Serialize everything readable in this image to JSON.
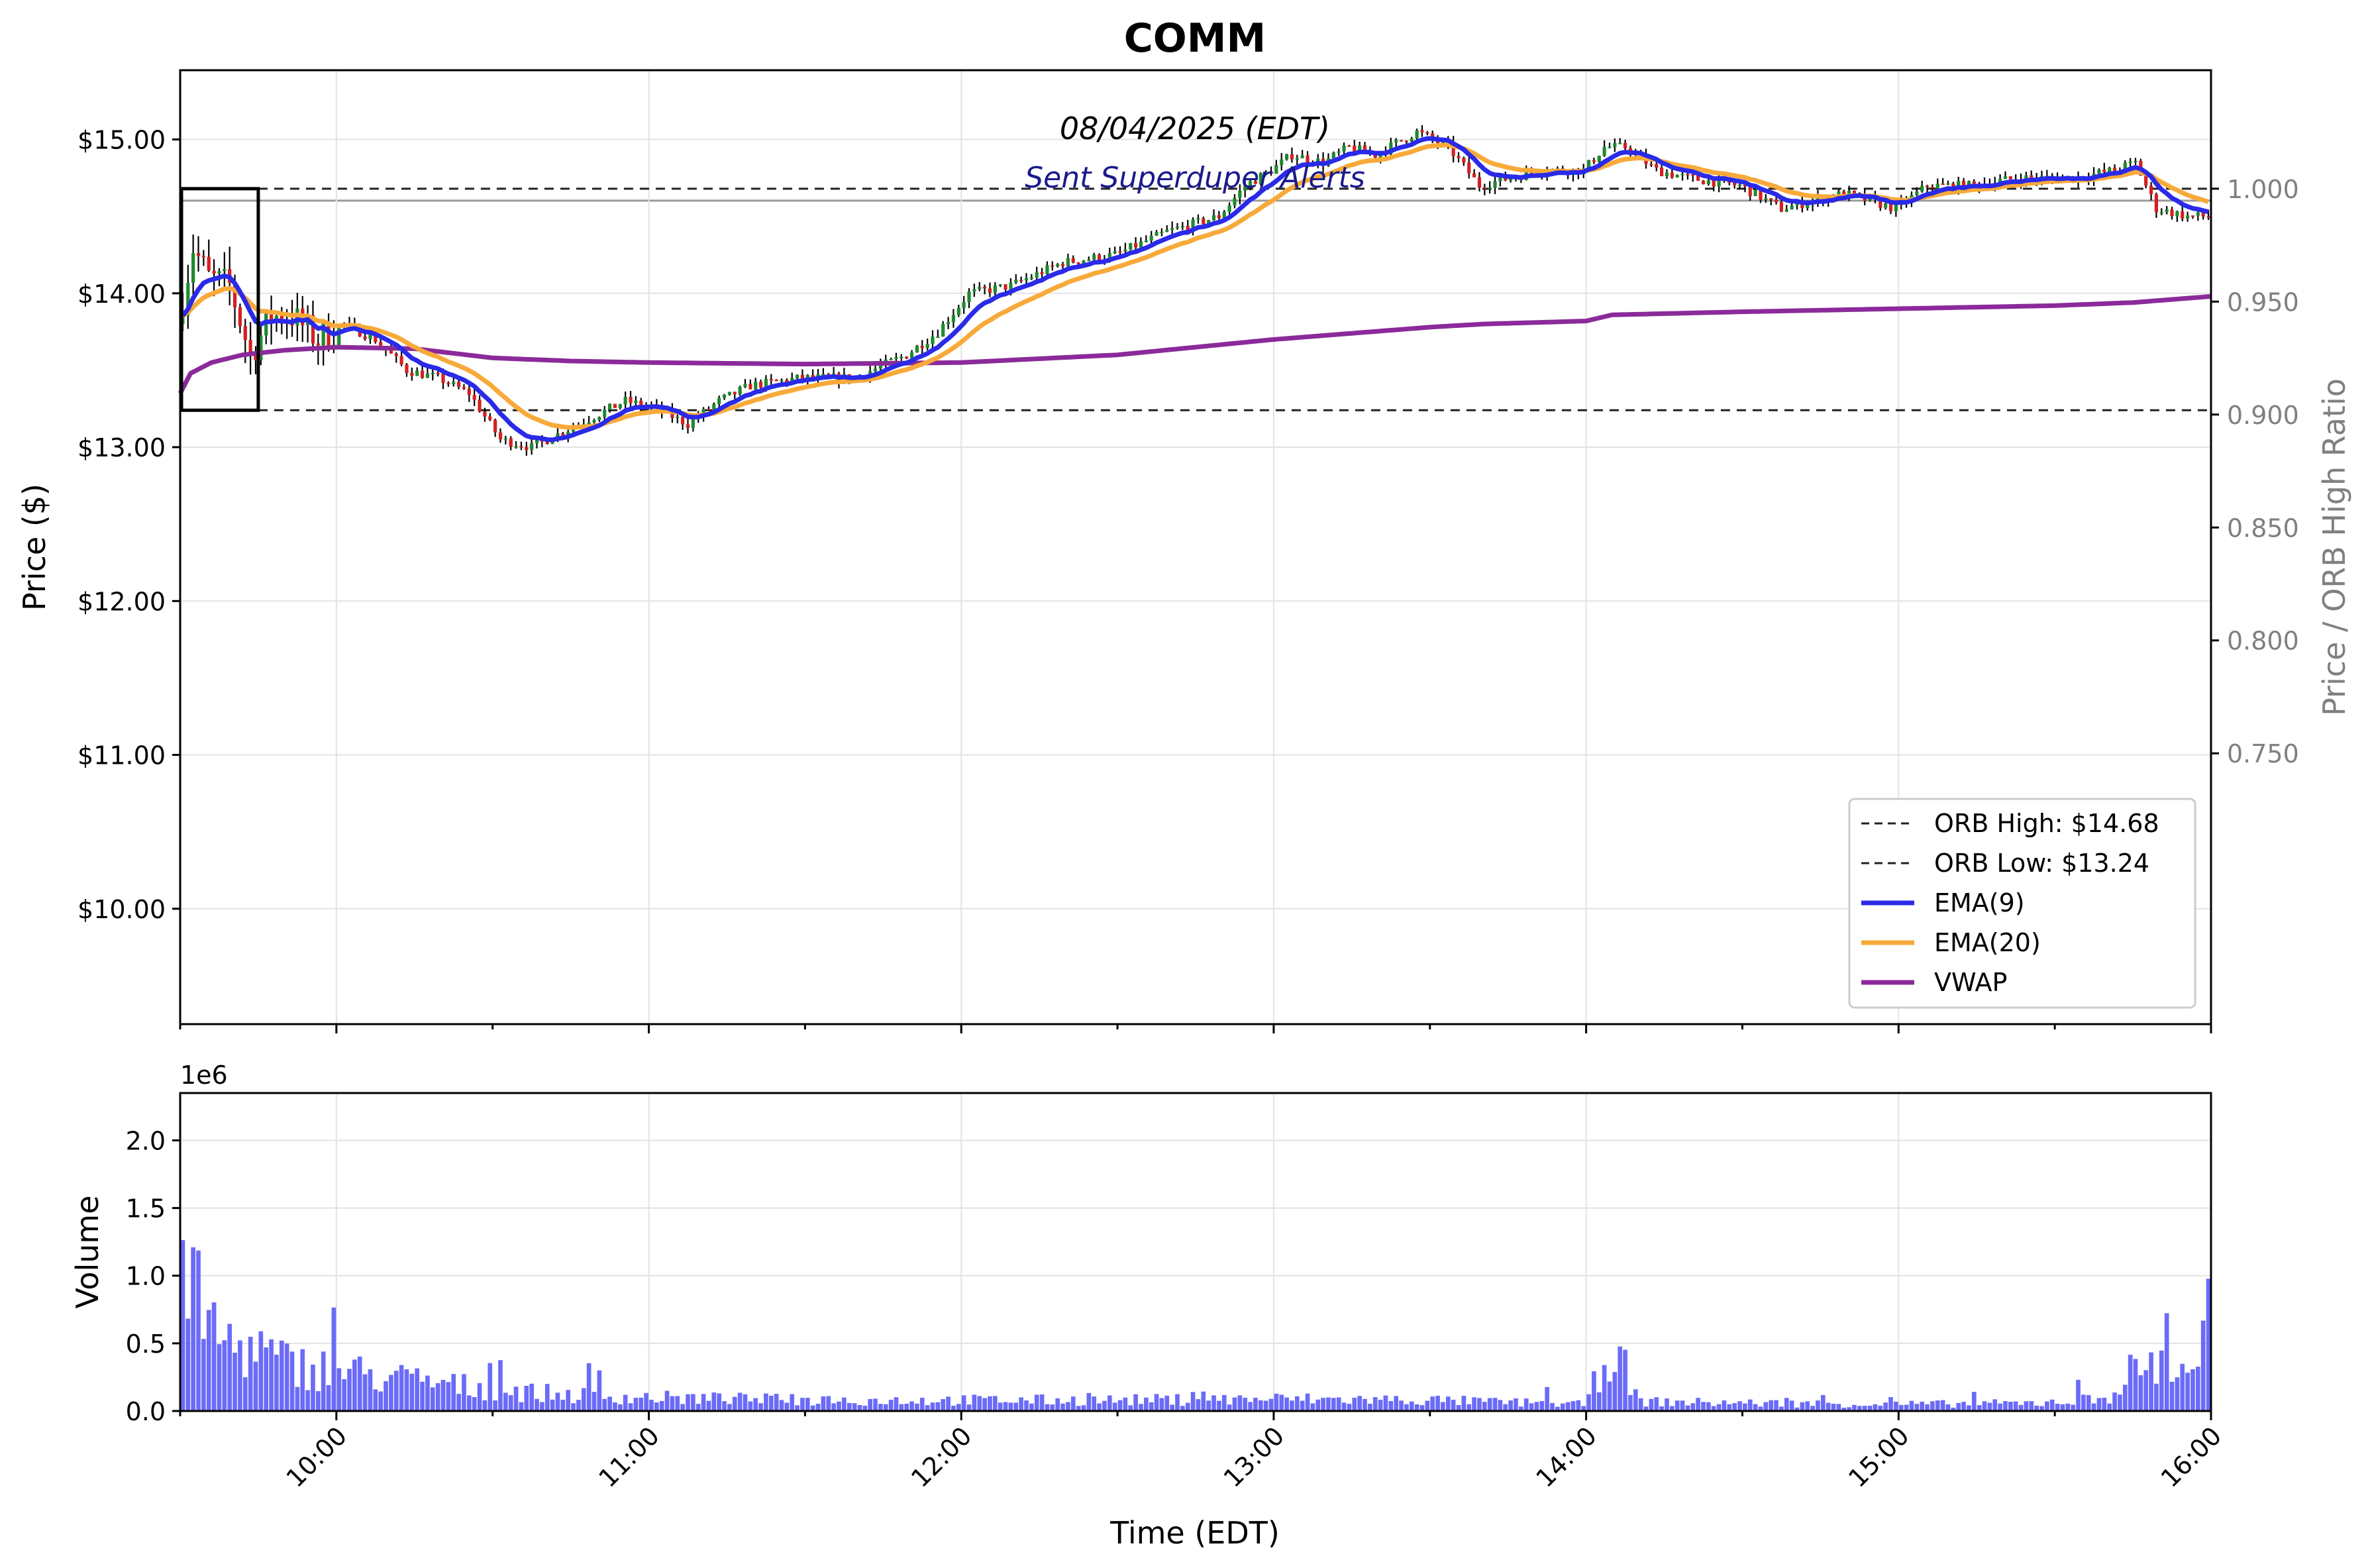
{
  "chart_data": {
    "type": "line",
    "title": "COMM",
    "date_label": "08/04/2025 (EDT)",
    "alert_label": "Sent Superduper Alerts",
    "price_panel": {
      "ylabel": "Price ($)",
      "ylim": [
        9.25,
        15.45
      ],
      "y_ticks": [
        10,
        11,
        12,
        13,
        14,
        15
      ],
      "y_tick_labels": [
        "$10.00",
        "$11.00",
        "$12.00",
        "$13.00",
        "$14.00",
        "$15.00"
      ],
      "right_axis": {
        "label": "Price / ORB High Ratio",
        "ticks": [
          0.75,
          0.8,
          0.85,
          0.9,
          0.95,
          1.0
        ],
        "tick_labels": [
          "0.750",
          "0.800",
          "0.850",
          "0.900",
          "0.950",
          "1.000"
        ]
      },
      "orb_high": 14.68,
      "orb_low": 13.24,
      "orb_window": [
        "09:30",
        "09:45"
      ],
      "series": [
        {
          "name": "ORB High: $14.68",
          "style": "dashed",
          "color": "#222222"
        },
        {
          "name": "ORB Low: $13.24",
          "style": "dashed",
          "color": "#222222"
        },
        {
          "name": "EMA(9)",
          "color": "#2a2ae8"
        },
        {
          "name": "EMA(20)",
          "color": "#f7aa3a"
        },
        {
          "name": "VWAP",
          "color": "#8b2a9a"
        }
      ],
      "price_path": {
        "time": [
          "09:30",
          "09:33",
          "09:36",
          "09:40",
          "09:44",
          "09:48",
          "09:52",
          "09:57",
          "10:02",
          "10:08",
          "10:14",
          "10:20",
          "10:26",
          "10:32",
          "10:38",
          "10:44",
          "10:50",
          "10:56",
          "11:02",
          "11:08",
          "11:14",
          "11:20",
          "11:30",
          "11:40",
          "11:50",
          "11:56",
          "12:02",
          "12:10",
          "12:20",
          "12:30",
          "12:40",
          "12:50",
          "12:55",
          "13:00",
          "13:04",
          "13:10",
          "13:15",
          "13:20",
          "13:28",
          "13:34",
          "13:40",
          "13:46",
          "13:52",
          "14:00",
          "14:04",
          "14:08",
          "14:14",
          "14:20",
          "14:30",
          "14:38",
          "14:44",
          "14:50",
          "15:00",
          "15:06",
          "15:14",
          "15:24",
          "15:34",
          "15:42",
          "15:46",
          "15:50",
          "15:56",
          "16:00"
        ],
        "close": [
          13.8,
          14.3,
          14.1,
          14.05,
          13.6,
          13.85,
          13.85,
          13.7,
          13.8,
          13.7,
          13.5,
          13.45,
          13.35,
          13.05,
          13.0,
          13.1,
          13.2,
          13.3,
          13.25,
          13.15,
          13.3,
          13.4,
          13.45,
          13.45,
          13.6,
          13.75,
          14.0,
          14.05,
          14.2,
          14.25,
          14.4,
          14.5,
          14.7,
          14.8,
          14.9,
          14.85,
          14.95,
          14.9,
          15.05,
          14.95,
          14.7,
          14.75,
          14.8,
          14.8,
          14.95,
          14.95,
          14.8,
          14.75,
          14.7,
          14.55,
          14.6,
          14.65,
          14.55,
          14.7,
          14.7,
          14.75,
          14.75,
          14.8,
          14.85,
          14.55,
          14.5,
          14.5
        ]
      },
      "vwap": {
        "time": [
          "09:30",
          "09:32",
          "09:36",
          "09:42",
          "09:50",
          "10:00",
          "10:15",
          "10:30",
          "10:45",
          "11:00",
          "11:30",
          "12:00",
          "12:30",
          "13:00",
          "13:30",
          "13:40",
          "14:00",
          "14:05",
          "14:30",
          "15:00",
          "15:30",
          "15:45",
          "16:00"
        ],
        "value": [
          13.35,
          13.48,
          13.55,
          13.6,
          13.63,
          13.65,
          13.64,
          13.58,
          13.56,
          13.55,
          13.54,
          13.55,
          13.6,
          13.7,
          13.78,
          13.8,
          13.82,
          13.86,
          13.88,
          13.9,
          13.92,
          13.94,
          13.98
        ]
      }
    },
    "volume_panel": {
      "ylabel": "Volume",
      "offset_label": "1e6",
      "ylim": [
        0,
        2.35
      ],
      "y_ticks": [
        0,
        0.5,
        1.0,
        1.5,
        2.0
      ],
      "y_tick_labels": [
        "0.0",
        "0.5",
        "1.0",
        "1.5",
        "2.0"
      ],
      "color": "#5b5bf7",
      "profile_millions": {
        "time": [
          "09:30",
          "09:31",
          "09:33",
          "09:35",
          "09:37",
          "09:40",
          "09:45",
          "09:50",
          "10:00",
          "10:10",
          "10:20",
          "10:30",
          "10:40",
          "10:50",
          "11:00",
          "11:30",
          "12:00",
          "12:30",
          "13:00",
          "13:30",
          "14:00",
          "14:05",
          "14:10",
          "14:30",
          "15:00",
          "15:30",
          "15:40",
          "15:45",
          "15:50",
          "15:55",
          "15:58",
          "15:59",
          "16:00"
        ],
        "value": [
          1.55,
          1.35,
          0.8,
          0.7,
          0.55,
          0.5,
          0.45,
          0.35,
          0.3,
          0.25,
          0.2,
          0.16,
          0.13,
          0.11,
          0.1,
          0.08,
          0.08,
          0.08,
          0.09,
          0.08,
          0.05,
          0.52,
          0.07,
          0.06,
          0.05,
          0.06,
          0.1,
          0.3,
          0.35,
          0.3,
          0.45,
          0.5,
          1.3
        ]
      }
    },
    "x_axis": {
      "label": "Time (EDT)",
      "range": [
        "09:30",
        "16:00"
      ],
      "ticks": [
        "10:00",
        "11:00",
        "12:00",
        "13:00",
        "14:00",
        "15:00",
        "16:00"
      ]
    },
    "grid": true,
    "legend_placement": "lower-right"
  }
}
